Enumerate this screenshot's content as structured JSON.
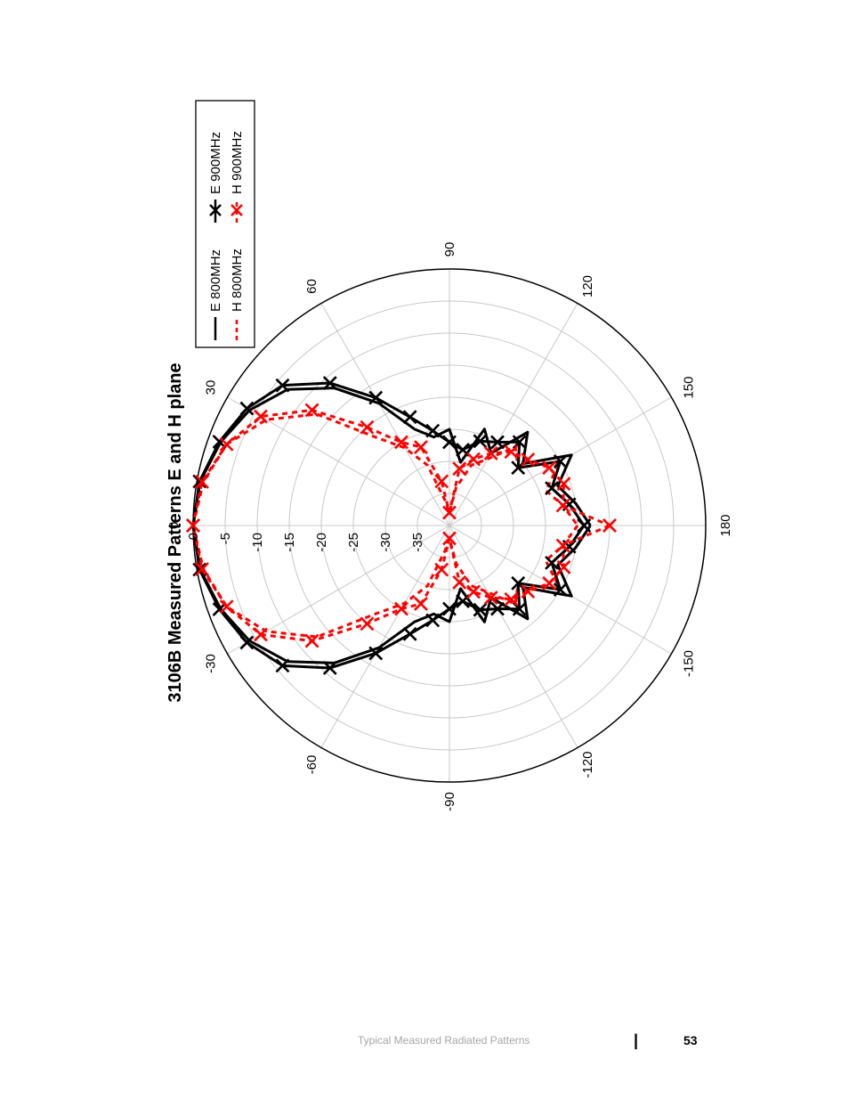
{
  "chart_data": {
    "type": "polar-line",
    "title": "3106B Measured Patterns E and H plane",
    "angle_unit": "degrees",
    "radial_unit": "dB",
    "angle_ticks": [
      "0",
      "30",
      "60",
      "90",
      "120",
      "150",
      "180",
      "-150",
      "-120",
      "-90",
      "-60",
      "-30"
    ],
    "angle_tick_values": [
      0,
      30,
      60,
      90,
      120,
      150,
      180,
      -150,
      -120,
      -90,
      -60,
      -30
    ],
    "radial_ticks": [
      "0",
      "-5",
      "-10",
      "-15",
      "-20",
      "-25",
      "-30",
      "-35"
    ],
    "radial_tick_values": [
      0,
      -5,
      -10,
      -15,
      -20,
      -25,
      -30,
      -35
    ],
    "rlim": [
      -40,
      0
    ],
    "grid": true,
    "legend": {
      "placement": "top-right",
      "entries": [
        "E 800MHz",
        "H 800MHz",
        "E 900MHz",
        "H 900MHz"
      ]
    },
    "series": [
      {
        "name": "E 800MHz",
        "color": "#000000",
        "style": "solid",
        "marker": "none",
        "angles": [
          -180,
          -170,
          -160,
          -150,
          -140,
          -130,
          -120,
          -110,
          -100,
          -90,
          -80,
          -70,
          -60,
          -50,
          -40,
          -30,
          -20,
          -10,
          0,
          10,
          20,
          30,
          40,
          50,
          60,
          70,
          80,
          90,
          100,
          110,
          120,
          130,
          140,
          150,
          160,
          170,
          180
        ],
        "values": [
          -18,
          -20,
          -22,
          -18,
          -25,
          -21,
          -27,
          -24,
          -30,
          -25,
          -26,
          -24,
          -18,
          -12,
          -7,
          -4,
          -2,
          -0.5,
          0,
          -0.5,
          -2,
          -4,
          -7,
          -12,
          -18,
          -24,
          -26,
          -25,
          -30,
          -24,
          -27,
          -21,
          -25,
          -18,
          -22,
          -20,
          -18
        ]
      },
      {
        "name": "H 800MHz",
        "color": "#ff0000",
        "style": "dashed",
        "marker": "none",
        "angles": [
          -180,
          -170,
          -160,
          -150,
          -140,
          -130,
          -120,
          -110,
          -100,
          -90,
          -80,
          -70,
          -60,
          -50,
          -40,
          -30,
          -20,
          -10,
          0,
          10,
          20,
          30,
          40,
          50,
          60,
          70,
          80,
          90,
          100,
          110,
          120,
          130,
          140,
          150,
          160,
          170,
          180
        ],
        "values": [
          -20,
          -22,
          -24,
          -20,
          -26,
          -24,
          -28,
          -30,
          -34,
          -38,
          -36,
          -30,
          -26,
          -22,
          -13,
          -7,
          -3,
          -1,
          0,
          -1,
          -3,
          -7,
          -13,
          -22,
          -26,
          -30,
          -36,
          -38,
          -34,
          -30,
          -28,
          -24,
          -26,
          -20,
          -24,
          -22,
          -20
        ]
      },
      {
        "name": "E 900MHz",
        "color": "#000000",
        "style": "solid",
        "marker": "x",
        "angles": [
          -180,
          -170,
          -160,
          -150,
          -140,
          -130,
          -120,
          -110,
          -100,
          -90,
          -80,
          -70,
          -60,
          -50,
          -40,
          -30,
          -20,
          -10,
          0,
          10,
          20,
          30,
          40,
          50,
          60,
          70,
          80,
          90,
          100,
          110,
          120,
          130,
          140,
          150,
          160,
          170,
          180
        ],
        "values": [
          -19,
          -21,
          -23,
          -20,
          -26,
          -23,
          -25,
          -26,
          -28,
          -27,
          -25,
          -22,
          -17,
          -11,
          -6,
          -3.5,
          -1.8,
          -0.4,
          0,
          -0.4,
          -1.8,
          -3.5,
          -6,
          -11,
          -17,
          -22,
          -25,
          -27,
          -28,
          -26,
          -25,
          -23,
          -26,
          -20,
          -23,
          -21,
          -19
        ]
      },
      {
        "name": "H 900MHz",
        "color": "#ff0000",
        "style": "dashed",
        "marker": "x",
        "angles": [
          -180,
          -170,
          -160,
          -150,
          -140,
          -130,
          -120,
          -110,
          -100,
          -90,
          -80,
          -70,
          -60,
          -50,
          -40,
          -30,
          -20,
          -10,
          0,
          10,
          20,
          30,
          40,
          50,
          60,
          70,
          80,
          90,
          100,
          110,
          120,
          130,
          140,
          150,
          160,
          170,
          180
        ],
        "values": [
          -15,
          -22,
          -21,
          -22,
          -24,
          -25,
          -27,
          -29,
          -31,
          -38,
          -33,
          -27,
          -25,
          -20,
          -12,
          -6,
          -3,
          -0.8,
          0,
          -0.8,
          -3,
          -6,
          -12,
          -20,
          -25,
          -27,
          -33,
          -38,
          -31,
          -29,
          -27,
          -25,
          -24,
          -22,
          -21,
          -22,
          -15
        ]
      }
    ]
  },
  "footer": {
    "section_title": "Typical Measured Radiated Patterns",
    "divider": "|",
    "page_number": "53"
  }
}
